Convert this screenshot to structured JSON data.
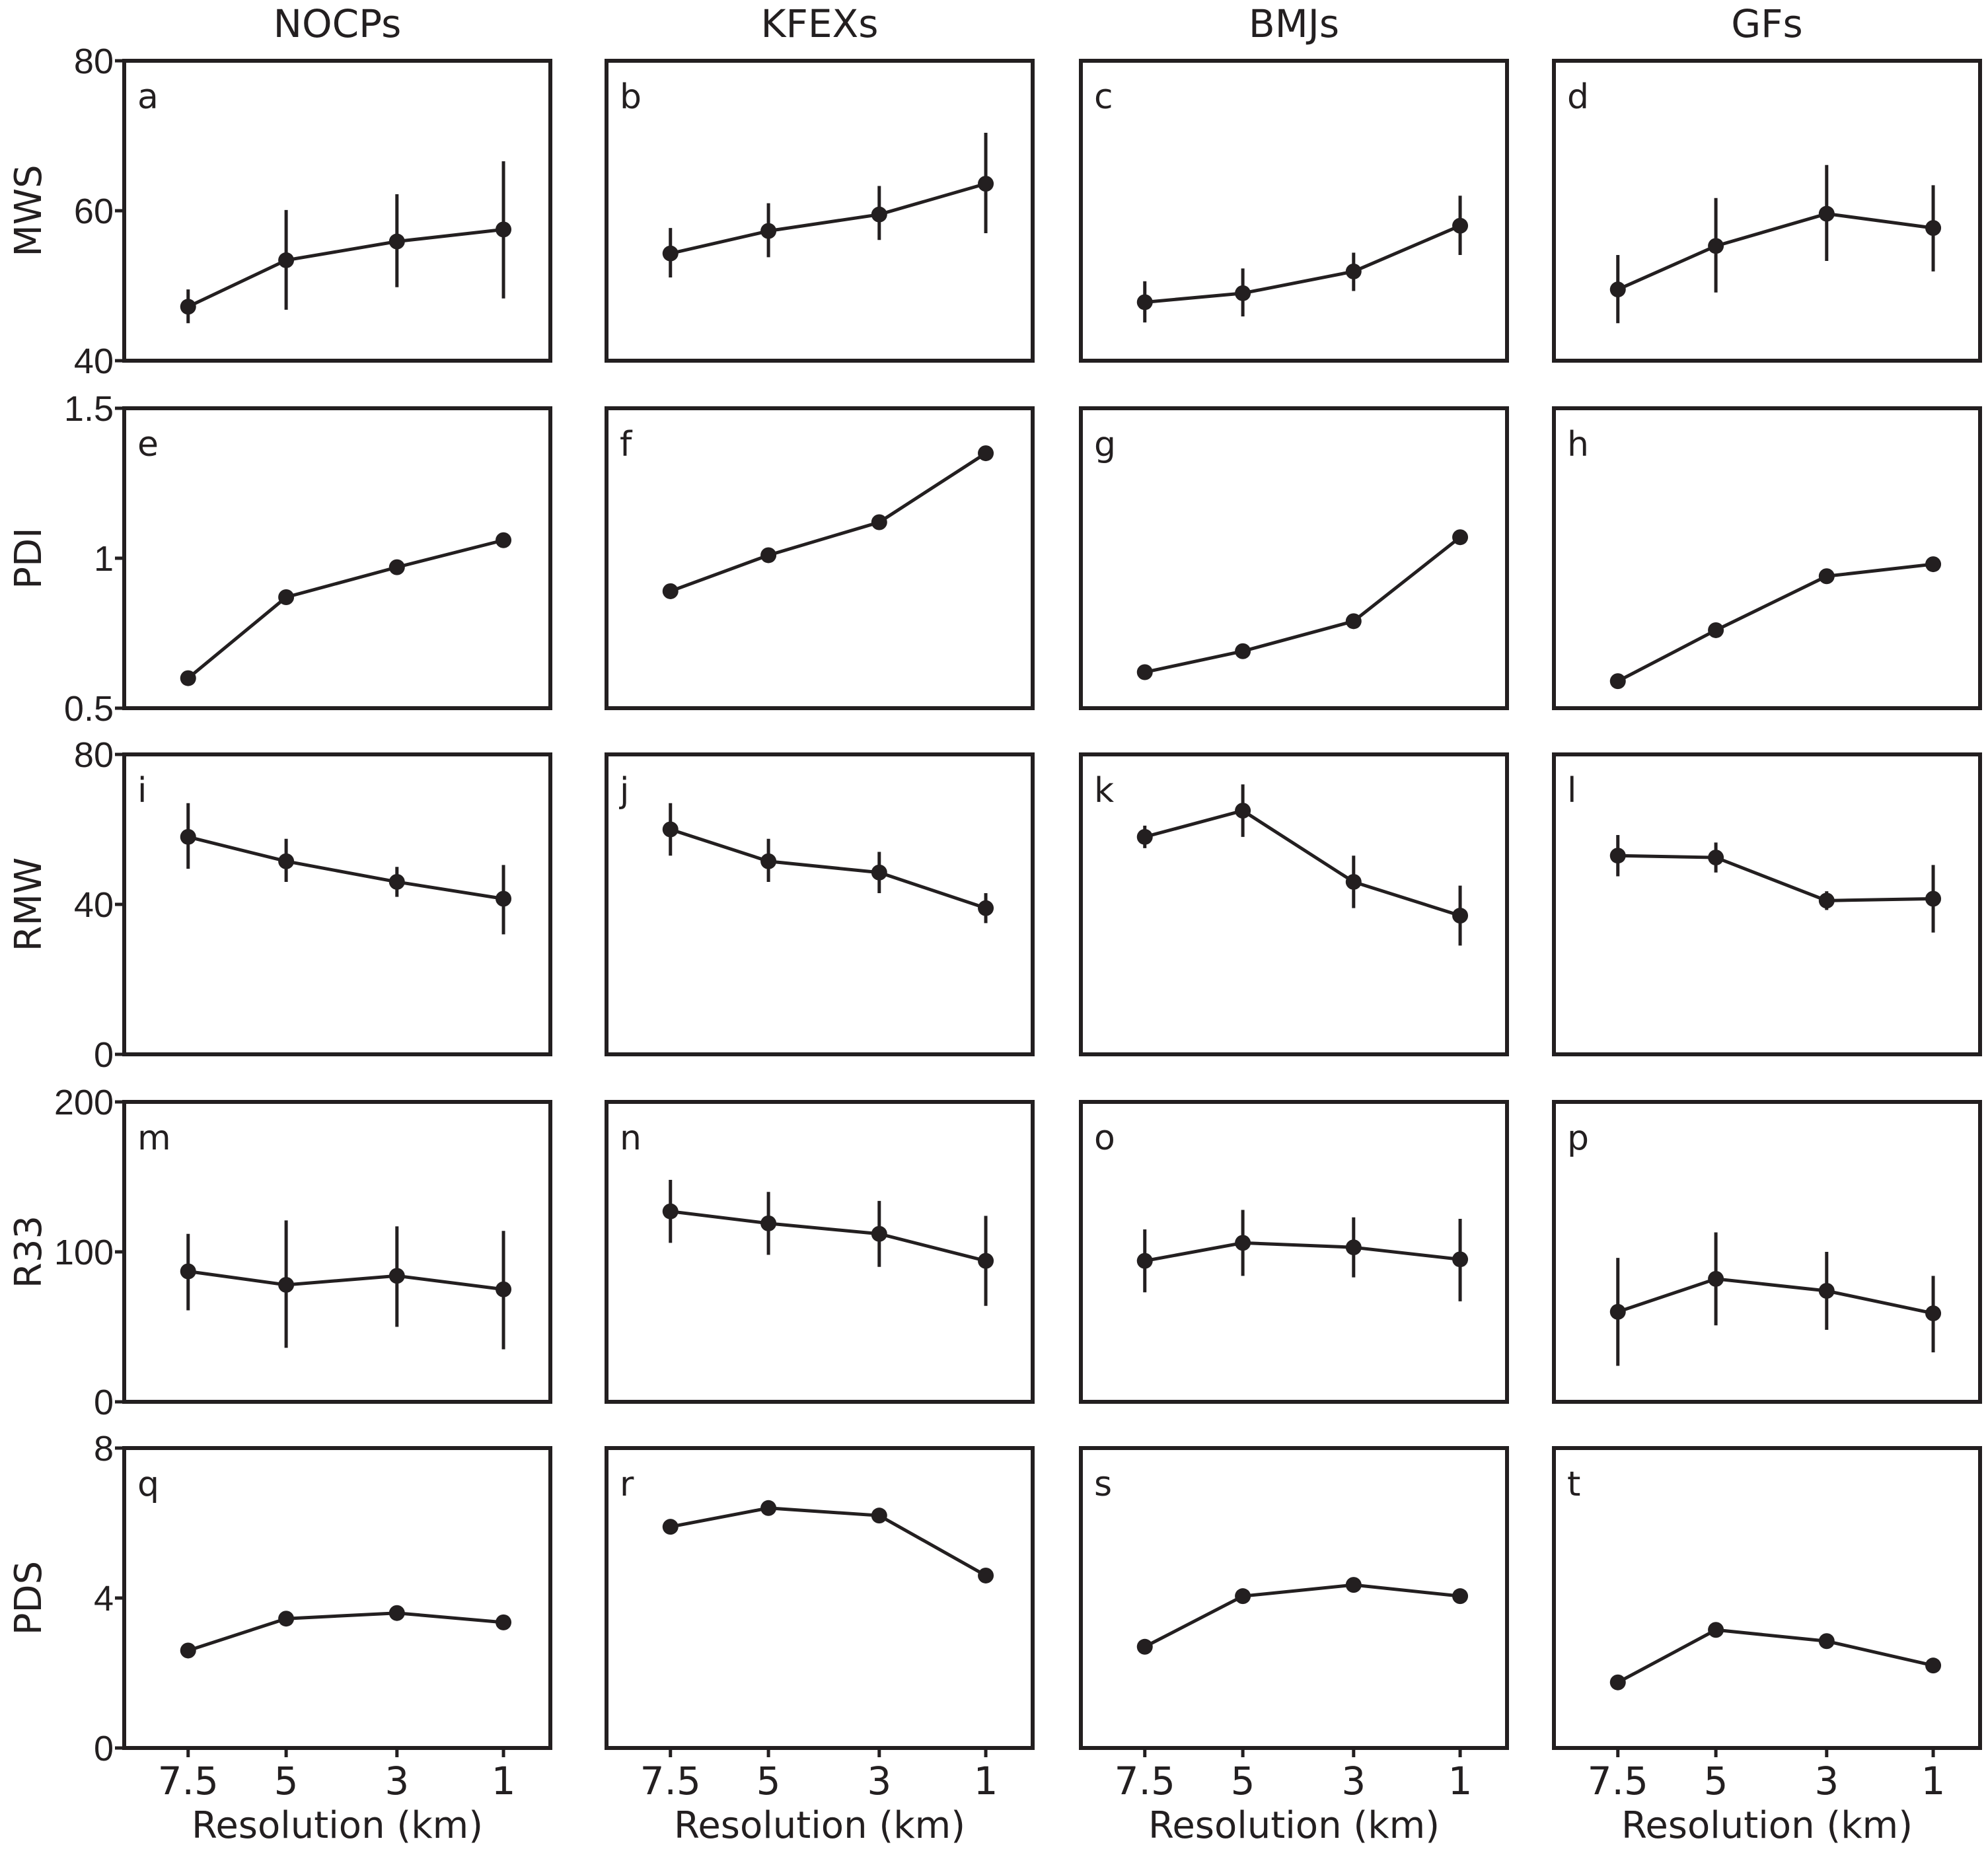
{
  "chart_data": {
    "type": "line",
    "layout": "grid",
    "columns": [
      "NOCPs",
      "KFEXs",
      "BMJs",
      "GFs"
    ],
    "rows": [
      {
        "ylabel": "MWS",
        "ylim": [
          40,
          80
        ],
        "yticks": [
          "40",
          "60",
          "80"
        ],
        "error_bars": true
      },
      {
        "ylabel": "PDI",
        "ylim": [
          0.5,
          1.5
        ],
        "yticks": [
          "0.5",
          "1",
          "1.5"
        ],
        "error_bars": false
      },
      {
        "ylabel": "RMW",
        "ylim": [
          0,
          80
        ],
        "yticks": [
          "0",
          "40",
          "80"
        ],
        "error_bars": true
      },
      {
        "ylabel": "R33",
        "ylim": [
          0,
          200
        ],
        "yticks": [
          "0",
          "100",
          "200"
        ],
        "error_bars": true
      },
      {
        "ylabel": "PDS",
        "ylim": [
          0,
          8
        ],
        "yticks": [
          "0",
          "4",
          "8"
        ],
        "error_bars": false
      }
    ],
    "categories": [
      "7.5",
      "5",
      "3",
      "1"
    ],
    "xlabel": "Resolution (km)",
    "panels": [
      {
        "label": "a",
        "row": 0,
        "col": 0,
        "values": [
          47.2,
          53.4,
          55.9,
          57.5
        ],
        "err_low": [
          45.0,
          46.8,
          49.8,
          48.3
        ],
        "err_high": [
          49.5,
          60.1,
          62.2,
          66.6
        ]
      },
      {
        "label": "b",
        "row": 0,
        "col": 1,
        "values": [
          54.3,
          57.3,
          59.5,
          63.6
        ],
        "err_low": [
          51.1,
          53.8,
          56.1,
          57.0
        ],
        "err_high": [
          57.7,
          61.0,
          63.3,
          70.4
        ]
      },
      {
        "label": "c",
        "row": 0,
        "col": 2,
        "values": [
          47.8,
          49.0,
          51.9,
          58.0
        ],
        "err_low": [
          45.1,
          45.9,
          49.3,
          54.1
        ],
        "err_high": [
          50.6,
          52.3,
          54.4,
          62.0
        ]
      },
      {
        "label": "d",
        "row": 0,
        "col": 3,
        "values": [
          49.5,
          55.3,
          59.6,
          57.7
        ],
        "err_low": [
          45.0,
          49.1,
          53.3,
          51.9
        ],
        "err_high": [
          54.1,
          61.7,
          66.1,
          63.4
        ]
      },
      {
        "label": "e",
        "row": 1,
        "col": 0,
        "values": [
          0.6,
          0.87,
          0.97,
          1.06
        ]
      },
      {
        "label": "f",
        "row": 1,
        "col": 1,
        "values": [
          0.89,
          1.01,
          1.12,
          1.35
        ]
      },
      {
        "label": "g",
        "row": 1,
        "col": 2,
        "values": [
          0.62,
          0.69,
          0.79,
          1.07
        ]
      },
      {
        "label": "h",
        "row": 1,
        "col": 3,
        "values": [
          0.59,
          0.76,
          0.94,
          0.98
        ]
      },
      {
        "label": "i",
        "row": 2,
        "col": 0,
        "values": [
          58,
          51.5,
          46,
          41.5
        ],
        "err_low": [
          49.5,
          46,
          42,
          32
        ],
        "err_high": [
          67,
          57.5,
          50,
          50.5
        ]
      },
      {
        "label": "j",
        "row": 2,
        "col": 1,
        "values": [
          60,
          51.5,
          48.5,
          39
        ],
        "err_low": [
          53,
          46,
          43,
          35
        ],
        "err_high": [
          67,
          57.5,
          54,
          43
        ]
      },
      {
        "label": "k",
        "row": 2,
        "col": 2,
        "values": [
          58,
          65,
          46,
          37
        ],
        "err_low": [
          55,
          58,
          39,
          29
        ],
        "err_high": [
          61,
          72,
          53,
          45
        ]
      },
      {
        "label": "l",
        "row": 2,
        "col": 3,
        "values": [
          53,
          52.5,
          41,
          41.5
        ],
        "err_low": [
          47.5,
          48.5,
          38.5,
          32.5
        ],
        "err_high": [
          58.5,
          56.5,
          43.5,
          50.5
        ]
      },
      {
        "label": "m",
        "row": 3,
        "col": 0,
        "values": [
          87,
          78,
          84,
          75
        ],
        "err_low": [
          61,
          36,
          50,
          35
        ],
        "err_high": [
          112,
          121,
          117,
          114
        ]
      },
      {
        "label": "n",
        "row": 3,
        "col": 1,
        "values": [
          127,
          119,
          112,
          94
        ],
        "err_low": [
          106,
          98,
          90,
          64
        ],
        "err_high": [
          148,
          140,
          134,
          124
        ]
      },
      {
        "label": "o",
        "row": 3,
        "col": 2,
        "values": [
          94,
          106,
          103,
          95
        ],
        "err_low": [
          73,
          84,
          83,
          67
        ],
        "err_high": [
          115,
          128,
          123,
          122
        ]
      },
      {
        "label": "p",
        "row": 3,
        "col": 3,
        "values": [
          60,
          82,
          74,
          59
        ],
        "err_low": [
          24,
          51,
          48,
          33
        ],
        "err_high": [
          96,
          113,
          100,
          84
        ]
      },
      {
        "label": "q",
        "row": 4,
        "col": 0,
        "values": [
          2.6,
          3.45,
          3.6,
          3.35
        ]
      },
      {
        "label": "r",
        "row": 4,
        "col": 1,
        "values": [
          5.9,
          6.4,
          6.2,
          4.6
        ]
      },
      {
        "label": "s",
        "row": 4,
        "col": 2,
        "values": [
          2.7,
          4.05,
          4.35,
          4.05
        ]
      },
      {
        "label": "t",
        "row": 4,
        "col": 3,
        "values": [
          1.75,
          3.15,
          2.85,
          2.2
        ]
      }
    ]
  }
}
